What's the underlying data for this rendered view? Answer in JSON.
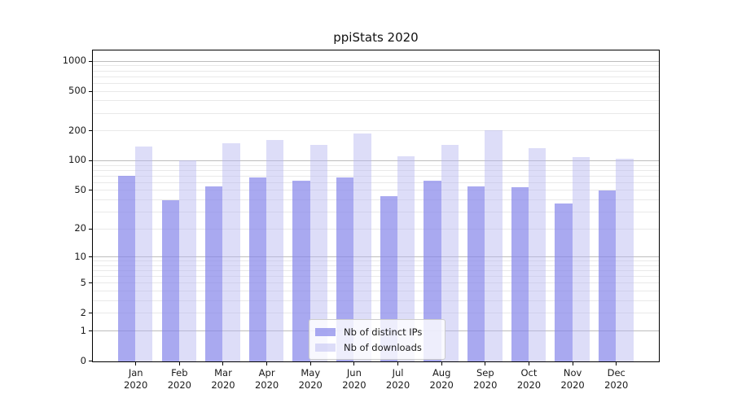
{
  "chart_data": {
    "type": "bar",
    "title": "ppiStats 2020",
    "categories": [
      "Jan",
      "Feb",
      "Mar",
      "Apr",
      "May",
      "Jun",
      "Jul",
      "Aug",
      "Sep",
      "Oct",
      "Nov",
      "Dec"
    ],
    "category_year": "2020",
    "series": [
      {
        "name": "Nb of distinct IPs",
        "color": "#8585ea",
        "alpha": 0.7,
        "values": [
          71,
          40,
          56,
          68,
          63,
          68,
          44,
          63,
          55,
          54,
          37,
          50
        ]
      },
      {
        "name": "Nb of downloads",
        "color": "#b3b3f0",
        "alpha": 0.45,
        "values": [
          142,
          102,
          151,
          164,
          145,
          192,
          112,
          145,
          206,
          136,
          111,
          105
        ]
      }
    ],
    "y_scale": "log1p",
    "ylim": [
      0,
      1270
    ],
    "y_ticks": [
      0,
      1,
      2,
      5,
      10,
      20,
      50,
      100,
      200,
      500,
      1000
    ],
    "y_major_gridlines": [
      1,
      10,
      100,
      1000
    ],
    "y_minor_gridlines": [
      2,
      3,
      4,
      5,
      6,
      7,
      8,
      9,
      20,
      30,
      40,
      50,
      60,
      70,
      80,
      90,
      200,
      300,
      400,
      500,
      600,
      700,
      800,
      900
    ],
    "grid": true,
    "legend_position": "lower center"
  },
  "colors": {
    "major_gridline": "#bdbdbd",
    "minor_gridline": "#e9e9e9",
    "axis": "#000000",
    "text": "#1a1a1a"
  }
}
